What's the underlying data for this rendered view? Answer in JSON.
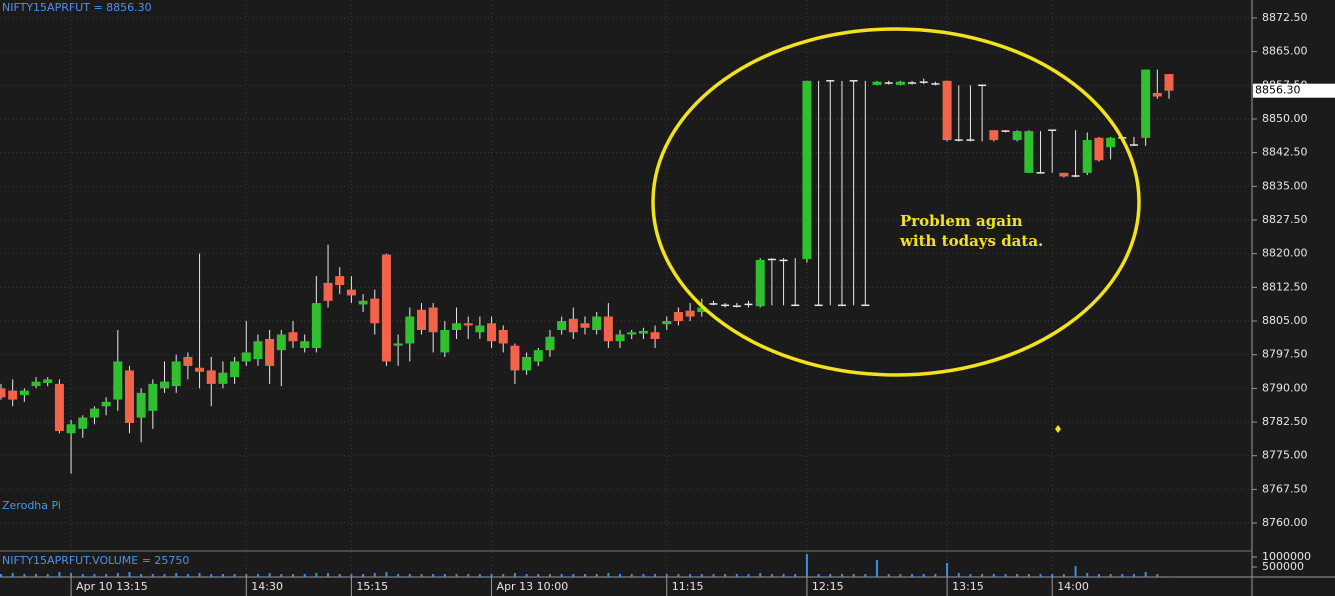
{
  "chart_data": [
    {
      "type": "candlestick",
      "title": "NIFTY15APRFUT = 8856.30",
      "watermark": "Zerodha Pi",
      "annotations": [
        "Problem again",
        "with todays data."
      ],
      "up_color": "#2fbf2f",
      "down_color": "#f2644a",
      "flat_color": "#e8e8e8",
      "open": [
        8790,
        8789.5,
        8788.5,
        8790.5,
        8791.2,
        8791,
        8780,
        8781,
        8783.5,
        8786,
        8787.5,
        8794,
        8783.5,
        8785,
        8790,
        8790.5,
        8797,
        8794.6,
        8794,
        8791,
        8792.5,
        8796,
        8796.5,
        8801,
        8798.5,
        8802.5,
        8799,
        8799,
        8813.5,
        8815,
        8812,
        8808.7,
        8810,
        8819.8,
        8799.5,
        8800,
        8807.5,
        8808,
        8798,
        8803,
        8804.5,
        8802.5,
        8804.5,
        8803,
        8799.5,
        8794,
        8796,
        8798.5,
        8803,
        8805.5,
        8804.5,
        8803,
        8806,
        8800.5,
        8802,
        8802.2,
        8802.5,
        8804.3,
        8807,
        8807.3,
        8807,
        8808.8,
        8808.5,
        8808.3,
        8808.7,
        8808.3,
        8818.7,
        8818.5,
        8808.5,
        8818.8,
        8808.5,
        8858.5,
        8808.5,
        8858.5,
        8808.5,
        8857.6,
        8858,
        8857.6,
        8858,
        8858.2,
        8857.8,
        8858.5,
        8845.3,
        8845.3,
        8857.5,
        8847.5,
        8847.3,
        8845.3,
        8838,
        8838,
        8847.5,
        8838,
        8837.3,
        8838,
        8845.8,
        8843.7,
        8845.8,
        8844.2,
        8845.8,
        8855.8,
        8860
      ],
      "high": [
        8791,
        8792,
        8790,
        8792.5,
        8792.5,
        8792,
        8783,
        8784,
        8786,
        8788,
        8803,
        8795,
        8790,
        8792,
        8796,
        8797.5,
        8798,
        8820,
        8797,
        8796,
        8797,
        8805,
        8802,
        8803,
        8803,
        8805,
        8802,
        8815,
        8822,
        8817,
        8815,
        8811,
        8812,
        8820,
        8802,
        8808,
        8809,
        8809,
        8805,
        8808,
        8806,
        8806,
        8806,
        8804,
        8800,
        8798,
        8799,
        8803,
        8806,
        8808,
        8806,
        8807,
        8809,
        8803,
        8803,
        8803.5,
        8804,
        8806,
        8808,
        8809,
        8810,
        8809.5,
        8809,
        8809,
        8809.5,
        8819,
        8819,
        8819,
        8819,
        8858.5,
        8858.5,
        8858.5,
        8858.5,
        8858.5,
        8858.5,
        8858.5,
        8858.5,
        8858.5,
        8858.5,
        8859,
        8858.3,
        8858.5,
        8857.5,
        8857.5,
        8857.5,
        8847.5,
        8847.5,
        8847.5,
        8847.5,
        8847.3,
        8847.5,
        8838,
        8847.5,
        8847,
        8846,
        8846,
        8846,
        8846,
        8861,
        8861,
        8860
      ],
      "low": [
        8787.5,
        8786,
        8787,
        8790,
        8790.5,
        8780,
        8771,
        8779,
        8782,
        8784,
        8785,
        8780,
        8778,
        8781,
        8789,
        8789,
        8792,
        8790,
        8786,
        8790,
        8791,
        8795,
        8795,
        8791,
        8790.5,
        8799,
        8798,
        8798,
        8808,
        8811,
        8809,
        8807,
        8802,
        8795,
        8795,
        8796,
        8802,
        8798,
        8797,
        8801,
        8801,
        8801,
        8799,
        8798,
        8791,
        8793,
        8795,
        8797,
        8802,
        8801,
        8802,
        8802,
        8799,
        8799,
        8801,
        8801,
        8799,
        8803,
        8804,
        8805,
        8806,
        8808.5,
        8808,
        8808,
        8808,
        8808,
        8808.5,
        8808.5,
        8808.5,
        8818,
        8808.5,
        8808.5,
        8808.5,
        8808.5,
        8808.5,
        8857.5,
        8857.7,
        8857.5,
        8857.7,
        8857.8,
        8857.5,
        8845,
        8845,
        8845,
        8845,
        8845,
        8847,
        8845,
        8838,
        8838,
        8838,
        8837,
        8837,
        8837.5,
        8840.5,
        8841,
        8845.5,
        8844,
        8844,
        8854.5,
        8854.5
      ],
      "close": [
        8788,
        8787.5,
        8789.5,
        8791.5,
        8792,
        8780.5,
        8782,
        8783.5,
        8785.5,
        8787,
        8796,
        8782.3,
        8789,
        8791,
        8791.5,
        8796,
        8795,
        8793.7,
        8791,
        8793.5,
        8796,
        8798,
        8800.5,
        8795,
        8802,
        8800.5,
        8800.5,
        8809,
        8809.5,
        8813,
        8810.7,
        8809.5,
        8804.5,
        8796,
        8800,
        8806,
        8803,
        8802.5,
        8803,
        8804.5,
        8804,
        8804,
        8800.5,
        8800,
        8794,
        8797,
        8798.5,
        8801.5,
        8805,
        8802.5,
        8803.5,
        8806,
        8800.5,
        8802,
        8802.5,
        8802.8,
        8801,
        8805,
        8805,
        8806,
        8808,
        8808.8,
        8808.5,
        8808.3,
        8808.7,
        8818.6,
        8818.7,
        8818.5,
        8808.5,
        8858.5,
        8808.5,
        8858.5,
        8808.5,
        8858.5,
        8808.5,
        8858.3,
        8858,
        8858.3,
        8858,
        8858.2,
        8857.8,
        8845.3,
        8845.3,
        8845.3,
        8857.5,
        8845.3,
        8847.3,
        8847.3,
        8847.3,
        8838,
        8847.5,
        8837.2,
        8837.3,
        8845.3,
        8840.8,
        8845.8,
        8845.8,
        8844.2,
        8861,
        8855,
        8856.3
      ],
      "last_price": {
        "value": 8856.3,
        "label": "8856.30"
      },
      "ylim": [
        8754,
        8876.5
      ],
      "yticks": [
        {
          "value": 8760,
          "label": "8760.00"
        },
        {
          "value": 8767.5,
          "label": "8767.50"
        },
        {
          "value": 8775,
          "label": "8775.00"
        },
        {
          "value": 8782.5,
          "label": "8782.50"
        },
        {
          "value": 8790,
          "label": "8790.00"
        },
        {
          "value": 8797.5,
          "label": "8797.50"
        },
        {
          "value": 8805,
          "label": "8805.00"
        },
        {
          "value": 8812.5,
          "label": "8812.50"
        },
        {
          "value": 8820,
          "label": "8820.00"
        },
        {
          "value": 8827.5,
          "label": "8827.50"
        },
        {
          "value": 8835,
          "label": "8835.00"
        },
        {
          "value": 8842.5,
          "label": "8842.50"
        },
        {
          "value": 8850,
          "label": "8850.00"
        },
        {
          "value": 8857.5,
          "label": "8857.50"
        },
        {
          "value": 8865,
          "label": "8865.00"
        },
        {
          "value": 8872.5,
          "label": "8872.50"
        }
      ],
      "grid": true
    },
    {
      "type": "bar",
      "title": "NIFTY15APRFUT.VOLUME = 25750",
      "color": "#3f8fe0",
      "categories": [
        null,
        null,
        null,
        null,
        null,
        null,
        "Apr 10 13:15",
        null,
        null,
        null,
        null,
        null,
        null,
        null,
        null,
        null,
        null,
        null,
        null,
        null,
        null,
        "14:30",
        null,
        null,
        null,
        null,
        null,
        null,
        null,
        null,
        "15:15",
        null,
        null,
        null,
        null,
        null,
        null,
        null,
        null,
        null,
        null,
        null,
        "Apr 13 10:00",
        null,
        null,
        null,
        null,
        null,
        null,
        null,
        null,
        null,
        null,
        null,
        null,
        null,
        null,
        "11:15",
        null,
        null,
        null,
        null,
        null,
        null,
        null,
        null,
        null,
        null,
        null,
        "12:15",
        null,
        null,
        null,
        null,
        null,
        null,
        null,
        null,
        null,
        null,
        null,
        "13:15",
        null,
        null,
        null,
        null,
        null,
        null,
        null,
        null,
        "14:00",
        null,
        null,
        null,
        null,
        null,
        null,
        null,
        null,
        null,
        null
      ],
      "values": [
        150000,
        200000,
        150000,
        150000,
        150000,
        250000,
        200000,
        150000,
        150000,
        150000,
        200000,
        250000,
        150000,
        150000,
        150000,
        200000,
        150000,
        200000,
        150000,
        150000,
        150000,
        150000,
        150000,
        200000,
        150000,
        150000,
        150000,
        200000,
        200000,
        150000,
        150000,
        150000,
        200000,
        250000,
        150000,
        150000,
        150000,
        150000,
        150000,
        150000,
        150000,
        150000,
        150000,
        150000,
        200000,
        150000,
        150000,
        150000,
        150000,
        150000,
        150000,
        150000,
        200000,
        150000,
        150000,
        150000,
        150000,
        150000,
        150000,
        150000,
        150000,
        150000,
        150000,
        150000,
        150000,
        200000,
        150000,
        150000,
        150000,
        1150000,
        150000,
        150000,
        150000,
        150000,
        150000,
        850000,
        150000,
        150000,
        150000,
        150000,
        150000,
        700000,
        200000,
        150000,
        150000,
        150000,
        150000,
        150000,
        150000,
        150000,
        150000,
        150000,
        550000,
        200000,
        150000,
        150000,
        150000,
        150000,
        250000,
        150000,
        25750
      ],
      "ylim": [
        0,
        1200000
      ],
      "yticks": [
        500000,
        1000000
      ]
    }
  ]
}
